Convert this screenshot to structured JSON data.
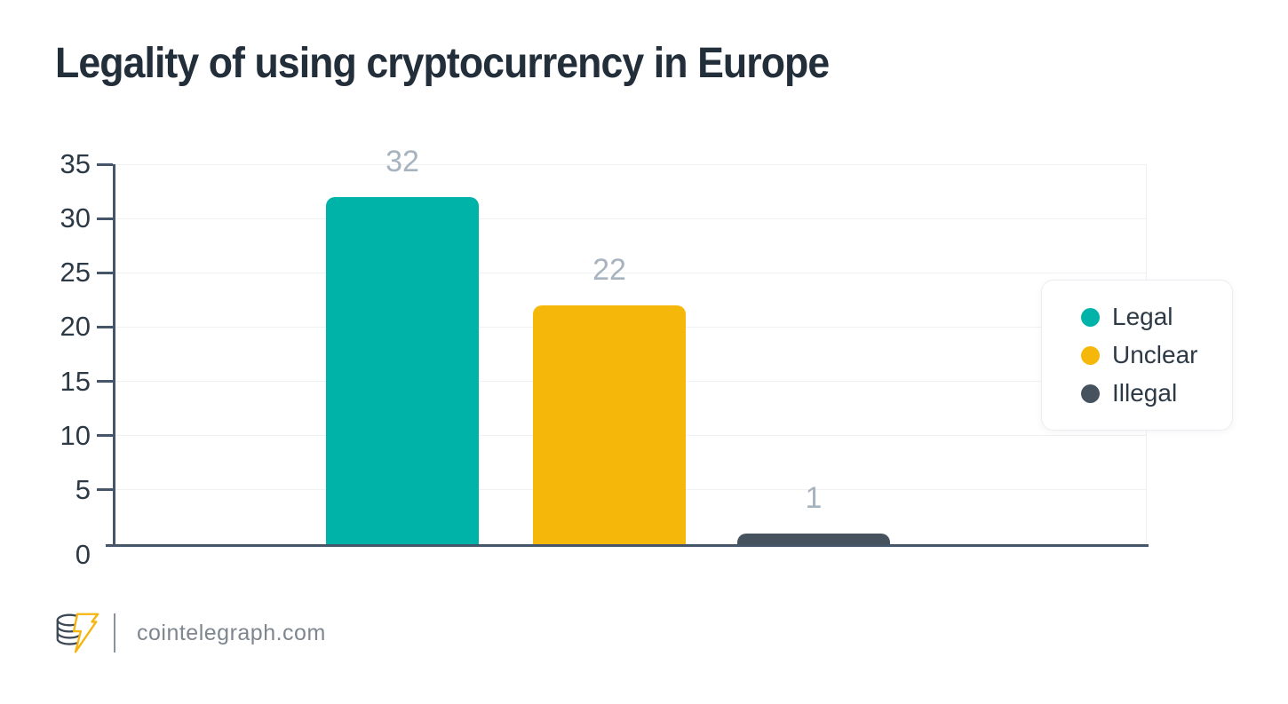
{
  "title": "Legality of using cryptocurrency in Europe",
  "chart_data": {
    "type": "bar",
    "categories": [
      "Legal",
      "Unclear",
      "Illegal"
    ],
    "values": [
      32,
      22,
      1
    ],
    "value_labels": [
      "32",
      "22",
      "1"
    ],
    "series_colors": [
      "#00b3a9",
      "#f5b70a",
      "#46535f"
    ],
    "title": "Legality of using cryptocurrency in Europe",
    "xlabel": "",
    "ylabel": "",
    "ylim": [
      0,
      35
    ],
    "yticks": [
      0,
      5,
      10,
      15,
      20,
      25,
      30,
      35
    ],
    "grid": true,
    "legend_position": "right"
  },
  "legend": {
    "items": [
      {
        "label": "Legal",
        "color": "#00b3a9"
      },
      {
        "label": "Unclear",
        "color": "#f5b70a"
      },
      {
        "label": "Illegal",
        "color": "#46535f"
      }
    ]
  },
  "colors": {
    "axis": "#45566a",
    "grid": "#f0f1f3",
    "value_label": "#a7b3bf",
    "tick_label": "#2d3a46",
    "title": "#222e3a",
    "legend_text": "#2d3a46",
    "footer_text": "#7e868f",
    "logo_coin_outline": "#3c4956",
    "logo_bolt": "#f6b40c"
  },
  "footer": {
    "source": "cointelegraph.com",
    "logo": "cointelegraph-logo"
  }
}
